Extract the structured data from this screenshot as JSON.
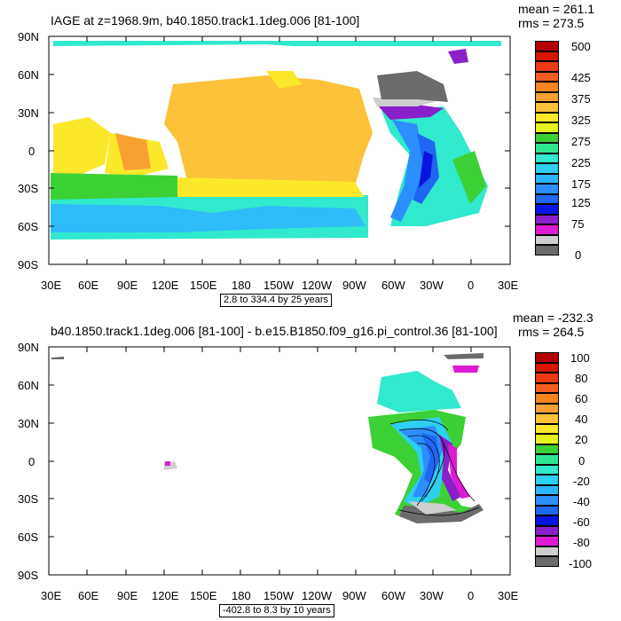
{
  "panel1": {
    "title": "IAGE at z=1968.9m, b40.1850.track1.1deg.006 [81-100]",
    "stats": {
      "mean": "mean = 261.1",
      "rms": "rms = 273.5"
    },
    "range": "2.8 to 334.4 by 25 years",
    "y_ticks": [
      "90N",
      "60N",
      "30N",
      "0",
      "30S",
      "60S",
      "90S"
    ],
    "x_ticks": [
      "30E",
      "60E",
      "90E",
      "120E",
      "150E",
      "180",
      "150W",
      "120W",
      "90W",
      "60W",
      "30W",
      "0",
      "30E"
    ],
    "colorbar": {
      "colors": [
        "#b30000",
        "#d71600",
        "#ee3a14",
        "#f35d1e",
        "#f7841d",
        "#f8a133",
        "#fbc23a",
        "#fbe82a",
        "#e6f21f",
        "#3cd135",
        "#2fe592",
        "#31e9cc",
        "#2ecff0",
        "#2eb5ff",
        "#2b8fff",
        "#1f67f3",
        "#0a14e0",
        "#8a20ca",
        "#dd1bd2",
        "#cecece",
        "#6b6b6b"
      ],
      "labels": [
        "500",
        "425",
        "375",
        "325",
        "275",
        "225",
        "175",
        "125",
        "75",
        "0"
      ]
    }
  },
  "panel2": {
    "title": "b40.1850.track1.1deg.006 [81-100] - b.e15.B1850.f09_g16.pi_control.36 [81-100]",
    "stats": {
      "mean": "mean = -232.3",
      "rms": "rms = 264.5"
    },
    "range": "-402.8 to 8.3 by 10 years",
    "y_ticks": [
      "90N",
      "60N",
      "30N",
      "0",
      "30S",
      "60S",
      "90S"
    ],
    "x_ticks": [
      "30E",
      "60E",
      "90E",
      "120E",
      "150E",
      "180",
      "150W",
      "120W",
      "90W",
      "60W",
      "30W",
      "0",
      "30E"
    ],
    "colorbar": {
      "colors": [
        "#b30000",
        "#d71600",
        "#ee3a14",
        "#f35d1e",
        "#f7841d",
        "#f8a133",
        "#fbc23a",
        "#fbe82a",
        "#e6f21f",
        "#3cd135",
        "#2fe592",
        "#31e9cc",
        "#2ecff0",
        "#2eb5ff",
        "#2b8fff",
        "#1f67f3",
        "#0a14e0",
        "#8a20ca",
        "#dd1bd2",
        "#cecece",
        "#6b6b6b"
      ],
      "labels": [
        "100",
        "80",
        "60",
        "40",
        "20",
        "0",
        "-20",
        "-40",
        "-60",
        "-80",
        "-100"
      ]
    }
  }
}
